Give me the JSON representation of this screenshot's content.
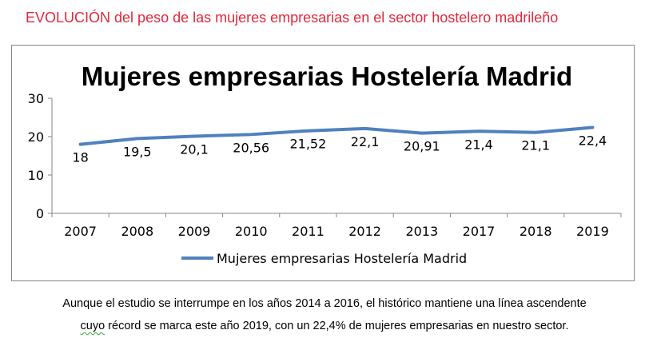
{
  "header": {
    "title_highlight": "EVOLUCIÓN",
    "title_rest": " del peso de las mujeres empresarias en el sector hostelero madrileño"
  },
  "chart_data": {
    "type": "line",
    "title": "Mujeres empresarias Hostelería Madrid",
    "categories": [
      "2007",
      "2008",
      "2009",
      "2010",
      "2011",
      "2012",
      "2013",
      "2017",
      "2018",
      "2019"
    ],
    "series": [
      {
        "name": "Mujeres empresarias Hostelería Madrid",
        "values": [
          18,
          19.5,
          20.1,
          20.56,
          21.52,
          22.1,
          20.91,
          21.4,
          21.1,
          22.4
        ],
        "labels": [
          "18",
          "19,5",
          "20,1",
          "20,56",
          "21,52",
          "22,1",
          "20,91",
          "21,4",
          "21,1",
          "22,4"
        ],
        "color": "#4f81bd"
      }
    ],
    "ylim": [
      0,
      30
    ],
    "yticks": [
      0,
      10,
      20,
      30
    ],
    "ytick_labels": [
      "0",
      "10",
      "20",
      "30"
    ],
    "grid": false,
    "legend": "bottom"
  },
  "caption": {
    "line1": "Aunque el estudio se interrumpe en los años 2014 a 2016, el histórico mantiene una línea ascendente",
    "line2_word": "cuyo",
    "line2_rest": " récord se marca este año 2019, con un 22,4% de mujeres empresarias en nuestro sector."
  }
}
